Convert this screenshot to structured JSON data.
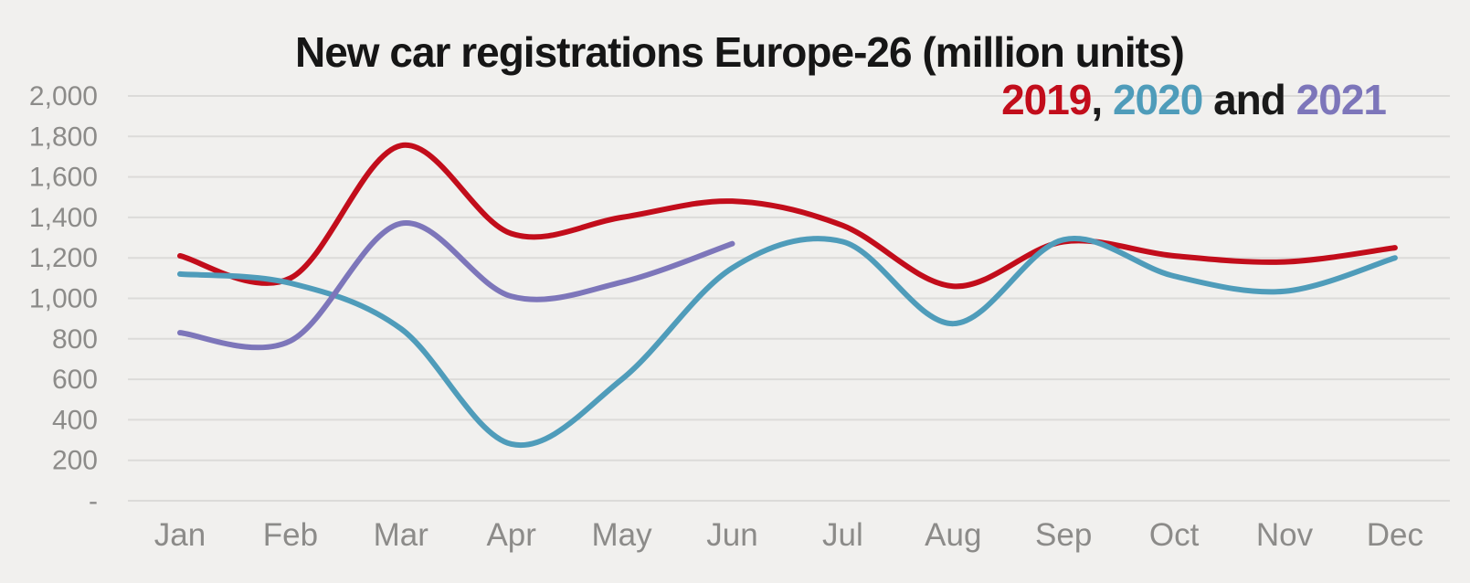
{
  "title": "New car registrations Europe-26 (million units)",
  "subtitle": {
    "year_2019": "2019",
    "comma": ", ",
    "year_2020": "2020",
    "and_word": " and ",
    "year_2021": "2021"
  },
  "colors": {
    "background": "#f1f0ee",
    "gridline": "#dcdbd9",
    "axis_text": "#8c8b89",
    "title_text": "#161616",
    "series_2019": "#c20d1b",
    "series_2020": "#4f9cba",
    "series_2021": "#7d76ba"
  },
  "chart_data": {
    "type": "line",
    "title": "New car registrations Europe-26 (million units)",
    "subtitle": "2019, 2020 and 2021",
    "categories": [
      "Jan",
      "Feb",
      "Mar",
      "Apr",
      "May",
      "Jun",
      "Jul",
      "Aug",
      "Sep",
      "Oct",
      "Nov",
      "Dec"
    ],
    "y_tick_labels": [
      "2,000",
      "1,800",
      "1,600",
      "1,400",
      "1,200",
      "1,000",
      "800",
      "600",
      "400",
      "200",
      "-"
    ],
    "y_tick_values": [
      2000,
      1800,
      1600,
      1400,
      1200,
      1000,
      800,
      600,
      400,
      200,
      0
    ],
    "ylim": [
      0,
      2000
    ],
    "xlabel": "",
    "ylabel": "",
    "grid": "horizontal-only",
    "line_style": "smoothed",
    "legend_position": "colored-years-in-subtitle",
    "series": [
      {
        "name": "2019",
        "color": "#c20d1b",
        "values": [
          1210,
          1100,
          1755,
          1320,
          1400,
          1480,
          1360,
          1060,
          1280,
          1210,
          1180,
          1250
        ]
      },
      {
        "name": "2020",
        "color": "#4f9cba",
        "values": [
          1120,
          1075,
          850,
          280,
          600,
          1150,
          1280,
          875,
          1290,
          1110,
          1035,
          1200
        ]
      },
      {
        "name": "2021",
        "color": "#7d76ba",
        "values": [
          830,
          790,
          1370,
          1010,
          1080,
          1270
        ]
      }
    ]
  }
}
